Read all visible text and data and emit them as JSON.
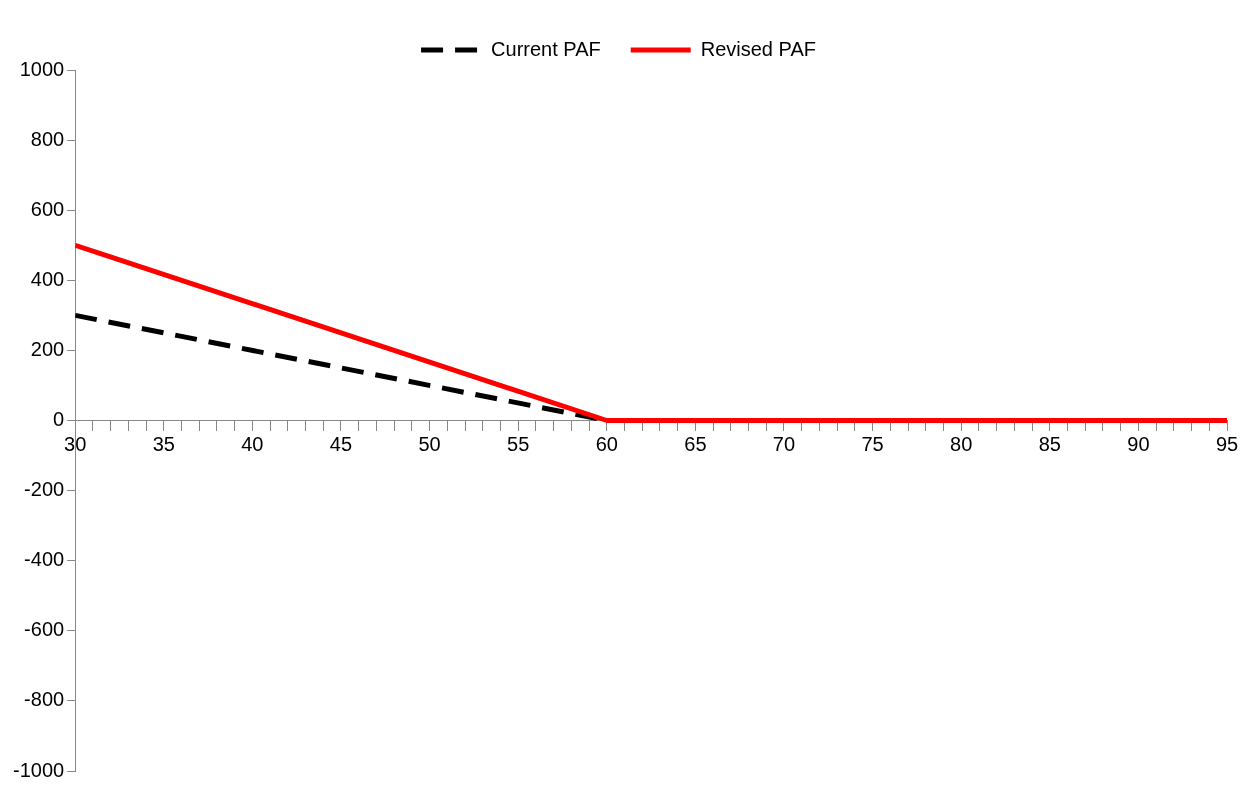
{
  "chart_data": {
    "type": "line",
    "x": [
      30,
      60,
      95
    ],
    "series": [
      {
        "name": "Current PAF",
        "color": "#000000",
        "values": [
          300,
          0,
          null
        ],
        "line_style": "dashed"
      },
      {
        "name": "Revised PAF",
        "color": "#ff0000",
        "values": [
          500,
          0,
          0
        ],
        "line_style": "solid"
      }
    ],
    "xlim": [
      30,
      95
    ],
    "xticks": [
      30,
      {
        "value": 31,
        "label": null
      },
      {
        "value": 32,
        "label": null
      },
      {
        "value": 33,
        "label": null
      },
      {
        "value": 34,
        "label": null
      },
      35,
      {
        "value": 36,
        "label": null
      },
      {
        "value": 37,
        "label": null
      },
      {
        "value": 38,
        "label": null
      },
      {
        "value": 39,
        "label": null
      },
      40,
      {
        "value": 41,
        "label": null
      },
      {
        "value": 42,
        "label": null
      },
      {
        "value": 43,
        "label": null
      },
      {
        "value": 44,
        "label": null
      },
      45,
      {
        "value": 46,
        "label": null
      },
      {
        "value": 47,
        "label": null
      },
      {
        "value": 48,
        "label": null
      },
      {
        "value": 49,
        "label": null
      },
      50,
      {
        "value": 51,
        "label": null
      },
      {
        "value": 52,
        "label": null
      },
      {
        "value": 53,
        "label": null
      },
      {
        "value": 54,
        "label": null
      },
      55,
      {
        "value": 56,
        "label": null
      },
      {
        "value": 57,
        "label": null
      },
      {
        "value": 58,
        "label": null
      },
      {
        "value": 59,
        "label": null
      },
      60,
      {
        "value": 61,
        "label": null
      },
      {
        "value": 62,
        "label": null
      },
      {
        "value": 63,
        "label": null
      },
      {
        "value": 64,
        "label": null
      },
      65,
      {
        "value": 66,
        "label": null
      },
      {
        "value": 67,
        "label": null
      },
      {
        "value": 68,
        "label": null
      },
      {
        "value": 69,
        "label": null
      },
      70,
      {
        "value": 71,
        "label": null
      },
      {
        "value": 72,
        "label": null
      },
      {
        "value": 73,
        "label": null
      },
      {
        "value": 74,
        "label": null
      },
      75,
      {
        "value": 76,
        "label": null
      },
      {
        "value": 77,
        "label": null
      },
      {
        "value": 78,
        "label": null
      },
      {
        "value": 79,
        "label": null
      },
      80,
      {
        "value": 81,
        "label": null
      },
      {
        "value": 82,
        "label": null
      },
      {
        "value": 83,
        "label": null
      },
      {
        "value": 84,
        "label": null
      },
      85,
      {
        "value": 86,
        "label": null
      },
      {
        "value": 87,
        "label": null
      },
      {
        "value": 88,
        "label": null
      },
      {
        "value": 89,
        "label": null
      },
      90,
      {
        "value": 91,
        "label": null
      },
      {
        "value": 92,
        "label": null
      },
      {
        "value": 93,
        "label": null
      },
      {
        "value": 94,
        "label": null
      },
      95
    ],
    "ylim": [
      -1000,
      1000
    ],
    "yticks": [
      -1000,
      -800,
      -600,
      -400,
      -200,
      0,
      200,
      400,
      600,
      800,
      1000
    ],
    "grid": false,
    "legend": "top",
    "marker": "none"
  }
}
